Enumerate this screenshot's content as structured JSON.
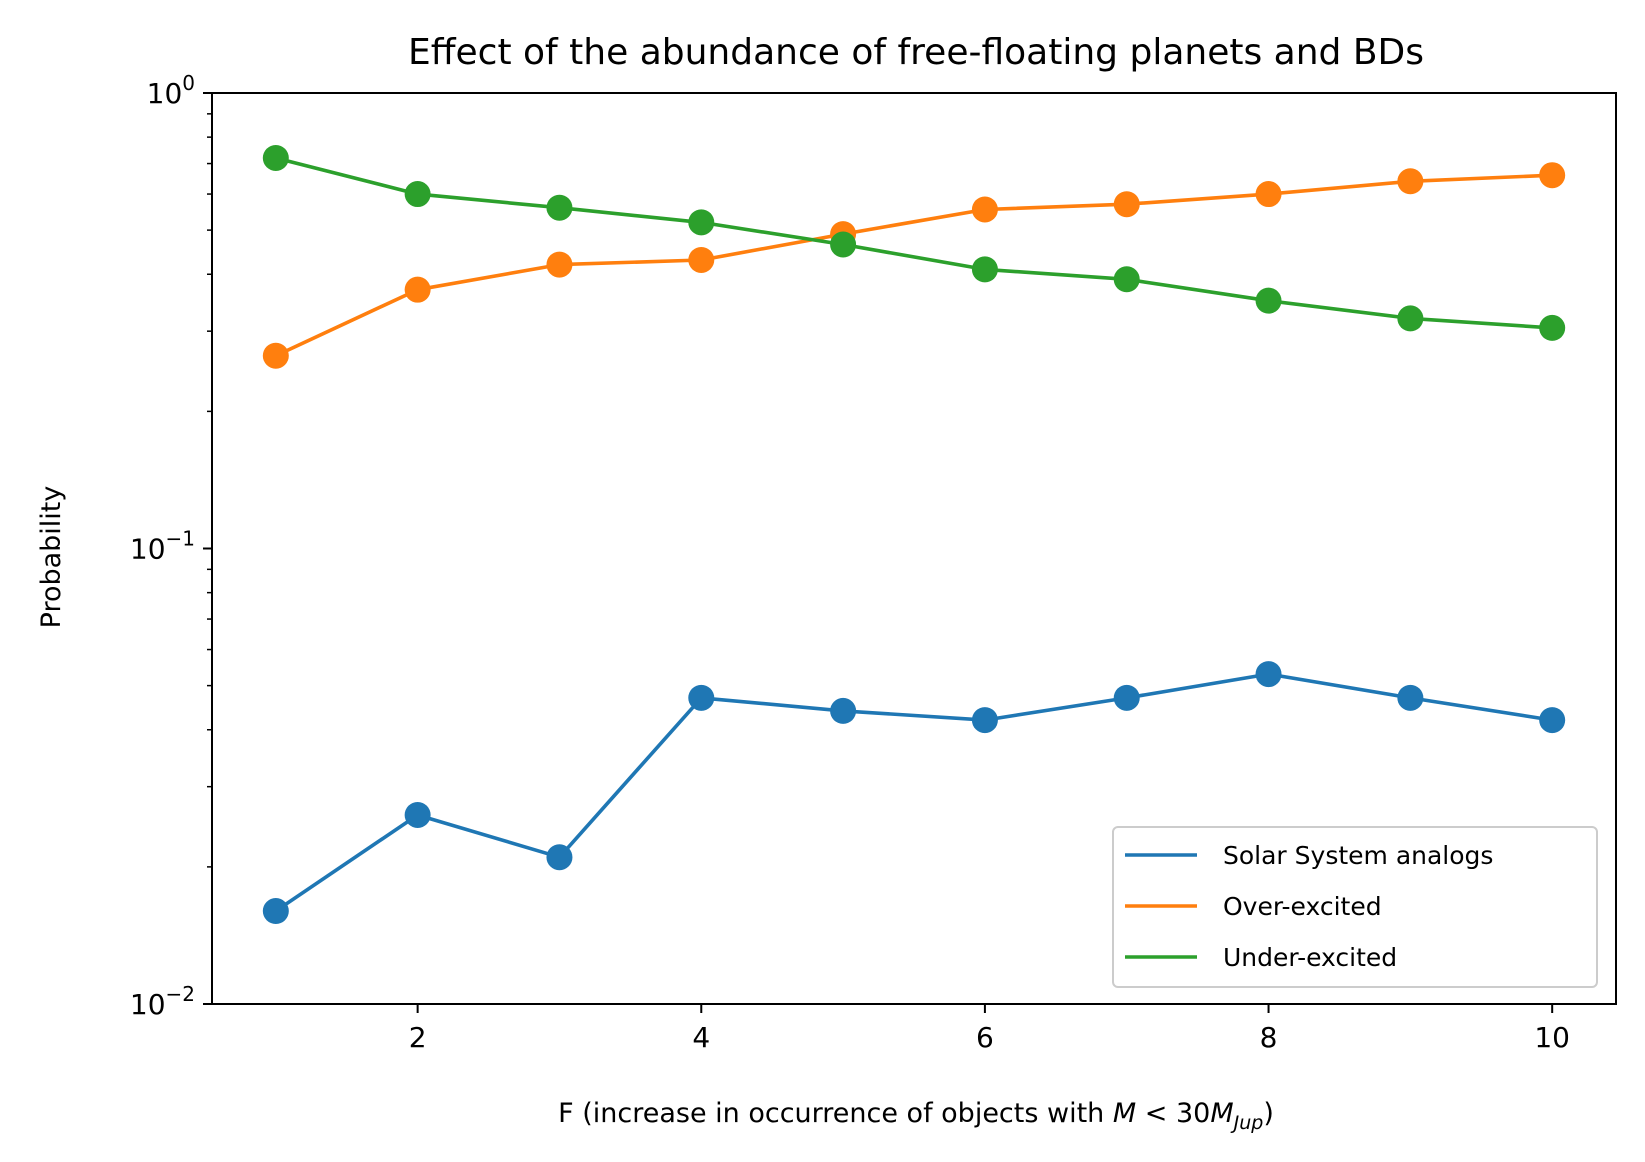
{
  "chart_data": {
    "type": "line",
    "title": "Effect of the abundance of free-floating planets and BDs",
    "xlabel_prefix": "F (increase in occurrence of objects with ",
    "xlabel_math_M": "M",
    "xlabel_math_lt": " < 30",
    "xlabel_math_Mjup": "M",
    "xlabel_math_sub": "Jup",
    "xlabel_suffix": ")",
    "ylabel": "Probability",
    "yscale": "log",
    "xlim": [
      0.55,
      10.45
    ],
    "ylim": [
      0.01,
      1
    ],
    "x_ticks": [
      2,
      4,
      6,
      8,
      10
    ],
    "x_tick_labels": [
      "2",
      "4",
      "6",
      "8",
      "10"
    ],
    "y_major_ticks": [
      {
        "value": 1,
        "base": "10",
        "exp": "0"
      },
      {
        "value": 0.1,
        "base": "10",
        "exp": "−1"
      },
      {
        "value": 0.01,
        "base": "10",
        "exp": "−2"
      }
    ],
    "x": [
      1,
      2,
      3,
      4,
      5,
      6,
      7,
      8,
      9,
      10
    ],
    "series": [
      {
        "name": "Solar System analogs",
        "color": "#1f77b4",
        "values": [
          0.016,
          0.026,
          0.021,
          0.047,
          0.044,
          0.042,
          0.047,
          0.053,
          0.047,
          0.042
        ]
      },
      {
        "name": "Over-excited",
        "color": "#ff7f0e",
        "values": [
          0.265,
          0.37,
          0.42,
          0.43,
          0.49,
          0.555,
          0.57,
          0.6,
          0.64,
          0.66
        ]
      },
      {
        "name": "Under-excited",
        "color": "#2ca02c",
        "values": [
          0.72,
          0.6,
          0.56,
          0.52,
          0.465,
          0.41,
          0.39,
          0.35,
          0.32,
          0.305
        ]
      }
    ],
    "legend_position": "lower-right",
    "grid": false
  }
}
